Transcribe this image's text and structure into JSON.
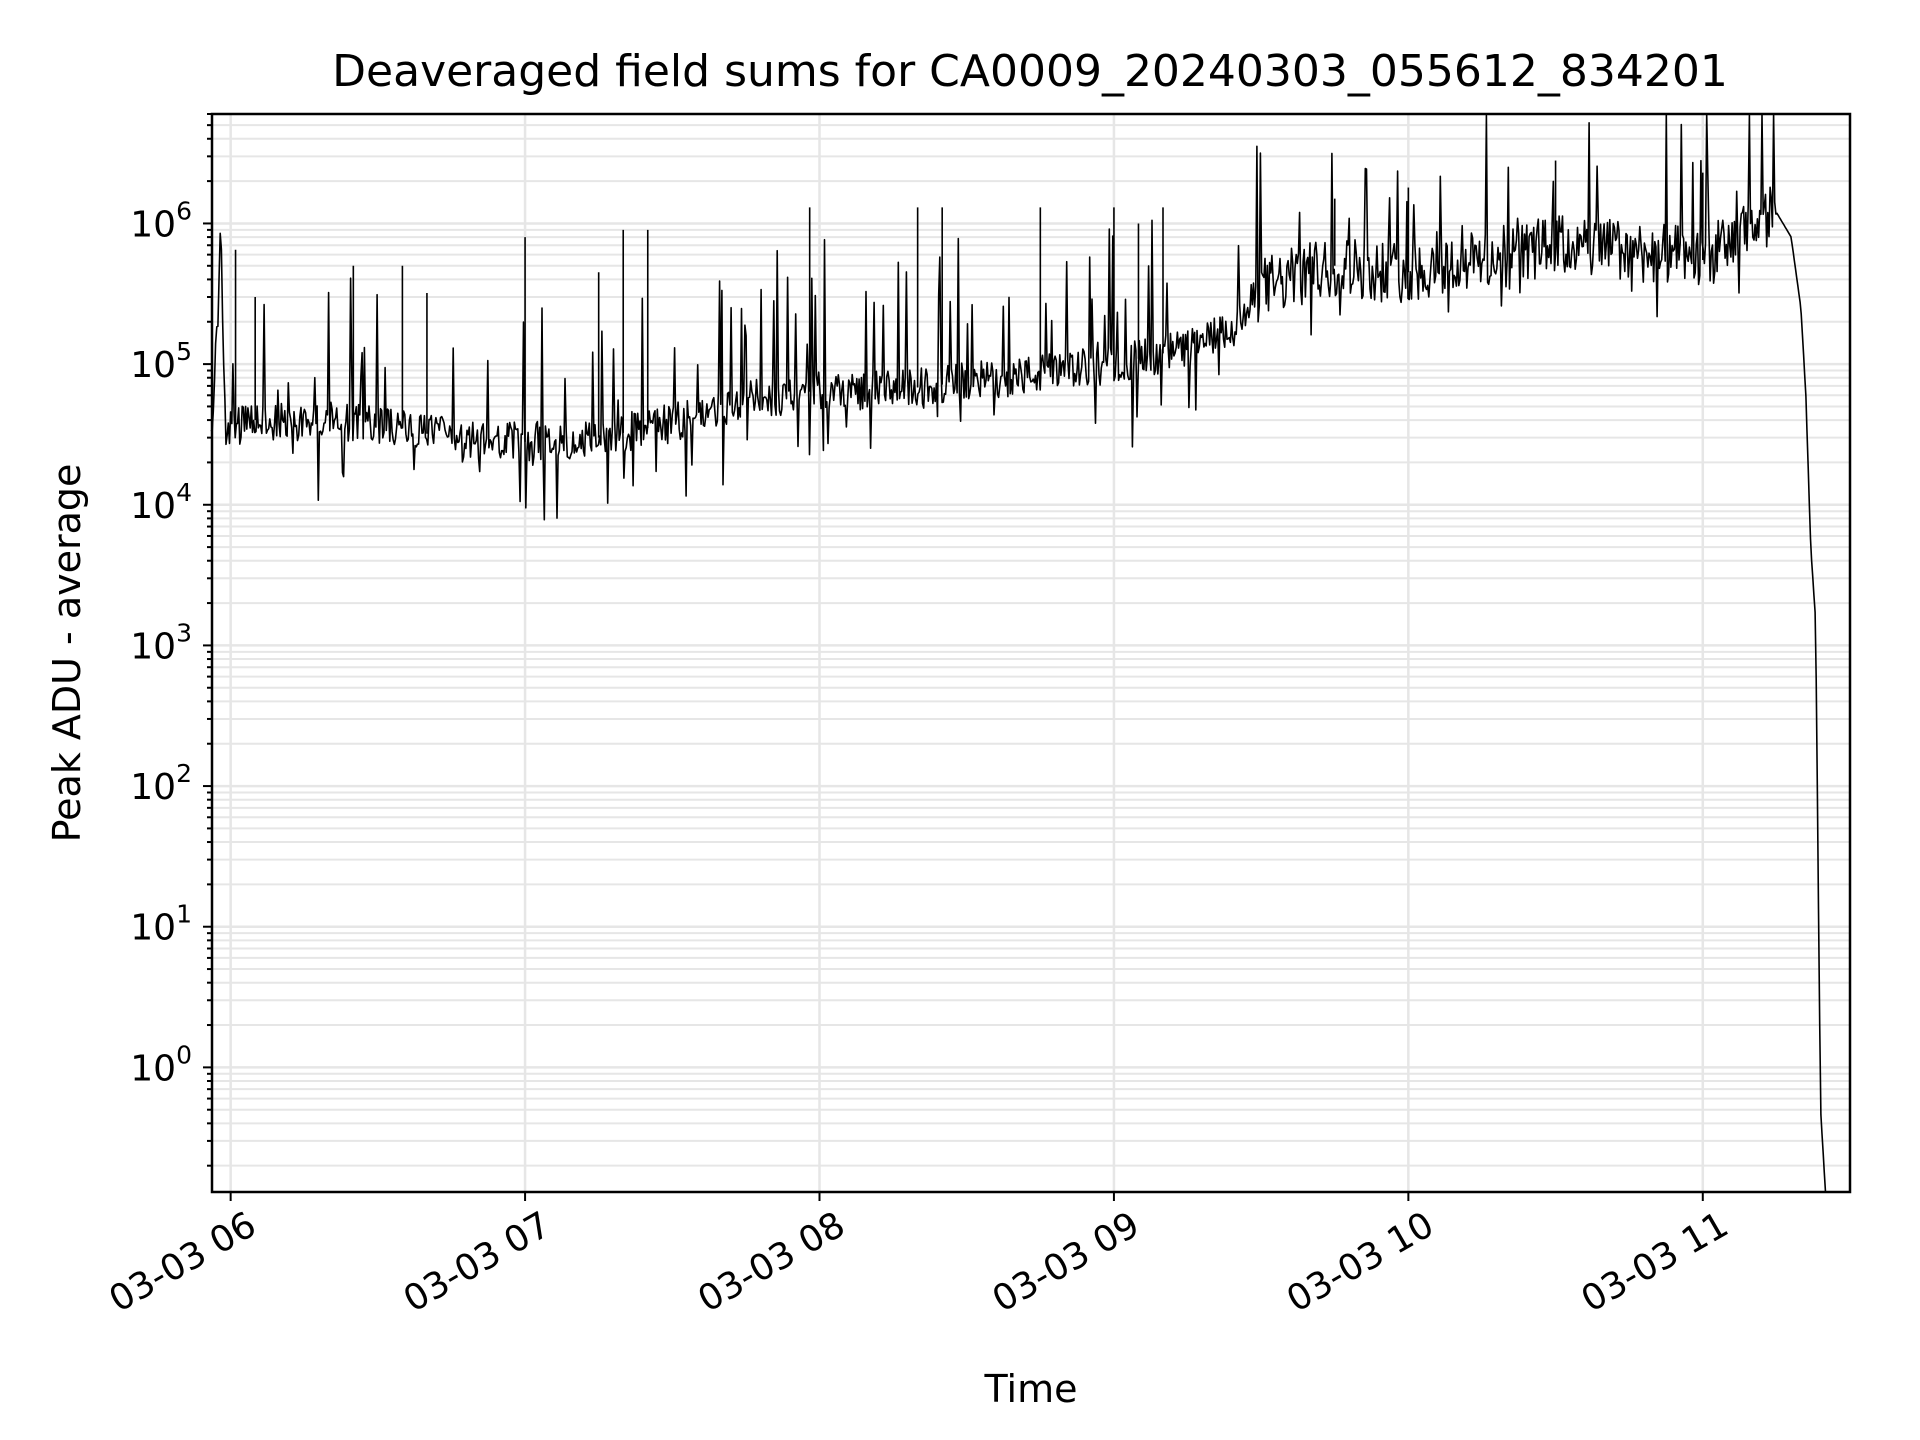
{
  "chart_data": {
    "type": "line",
    "title": "Deaveraged field sums for CA0009_20240303_055612_834201",
    "xlabel": "Time",
    "ylabel": "Peak ADU - average",
    "yscale": "log",
    "ylim": [
      0.13,
      6000000
    ],
    "xlim": [
      "2024-03-03 05:56:12",
      "2024-03-03 11:30:00"
    ],
    "x_ticks": [
      "03-03 06",
      "03-03 07",
      "03-03 08",
      "03-03 09",
      "03-03 10",
      "03-03 11"
    ],
    "y_ticks": [
      {
        "base": "10",
        "exp": "0"
      },
      {
        "base": "10",
        "exp": "1"
      },
      {
        "base": "10",
        "exp": "2"
      },
      {
        "base": "10",
        "exp": "3"
      },
      {
        "base": "10",
        "exp": "4"
      },
      {
        "base": "10",
        "exp": "5"
      },
      {
        "base": "10",
        "exp": "6"
      }
    ],
    "grid": true,
    "line_color": "#000000",
    "grid_color": "#e6e6e6",
    "series": [
      {
        "x": [
          "2024-03-03 05:56",
          "2024-03-03 05:58",
          "2024-03-03 05:59",
          "2024-03-03 06:01",
          "2024-03-03 06:05",
          "2024-03-03 06:10",
          "2024-03-03 06:20",
          "2024-03-03 06:30",
          "2024-03-03 06:40",
          "2024-03-03 06:50",
          "2024-03-03 07:00",
          "2024-03-03 07:15",
          "2024-03-03 07:30",
          "2024-03-03 07:45",
          "2024-03-03 08:00",
          "2024-03-03 08:15",
          "2024-03-03 08:30",
          "2024-03-03 08:45",
          "2024-03-03 09:00",
          "2024-03-03 09:15",
          "2024-03-03 09:25",
          "2024-03-03 09:30",
          "2024-03-03 09:45",
          "2024-03-03 10:00",
          "2024-03-03 10:15",
          "2024-03-03 10:30",
          "2024-03-03 10:45",
          "2024-03-03 11:00",
          "2024-03-03 11:10",
          "2024-03-03 11:15",
          "2024-03-03 11:18",
          "2024-03-03 11:20",
          "2024-03-03 11:21",
          "2024-03-03 11:22",
          "2024-03-03 11:23",
          "2024-03-03 11:24",
          "2024-03-03 11:25"
        ],
        "values": [
          25000,
          650000,
          35000,
          35000,
          40000,
          38000,
          40000,
          38000,
          32000,
          28000,
          28000,
          30000,
          38000,
          55000,
          65000,
          65000,
          75000,
          85000,
          100000,
          130000,
          180000,
          350000,
          500000,
          450000,
          550000,
          700000,
          650000,
          550000,
          900000,
          1200000,
          800000,
          250000,
          60000,
          5000,
          1500,
          0.5,
          0.13
        ],
        "spikes": [
          {
            "x": "2024-03-03 06:01",
            "value": 650000
          },
          {
            "x": "2024-03-03 06:05",
            "value": 300000
          },
          {
            "x": "2024-03-03 06:25",
            "value": 500000
          },
          {
            "x": "2024-03-03 06:35",
            "value": 500000
          },
          {
            "x": "2024-03-03 06:40",
            "value": 320000
          },
          {
            "x": "2024-03-03 07:00",
            "value": 800000
          },
          {
            "x": "2024-03-03 07:15",
            "value": 450000
          },
          {
            "x": "2024-03-03 07:20",
            "value": 900000
          },
          {
            "x": "2024-03-03 07:25",
            "value": 900000
          },
          {
            "x": "2024-03-03 07:58",
            "value": 1300000
          },
          {
            "x": "2024-03-03 08:20",
            "value": 1300000
          },
          {
            "x": "2024-03-03 08:25",
            "value": 1300000
          },
          {
            "x": "2024-03-03 08:45",
            "value": 1300000
          },
          {
            "x": "2024-03-03 09:00",
            "value": 1300000
          },
          {
            "x": "2024-03-03 09:05",
            "value": 1000000
          },
          {
            "x": "2024-03-03 09:10",
            "value": 1300000
          },
          {
            "x": "2024-03-03 09:45",
            "value": 1500000
          },
          {
            "x": "2024-03-03 10:00",
            "value": 1800000
          },
          {
            "x": "2024-03-03 10:30",
            "value": 2800000
          },
          {
            "x": "2024-03-03 11:00",
            "value": 2300000
          }
        ]
      }
    ]
  }
}
